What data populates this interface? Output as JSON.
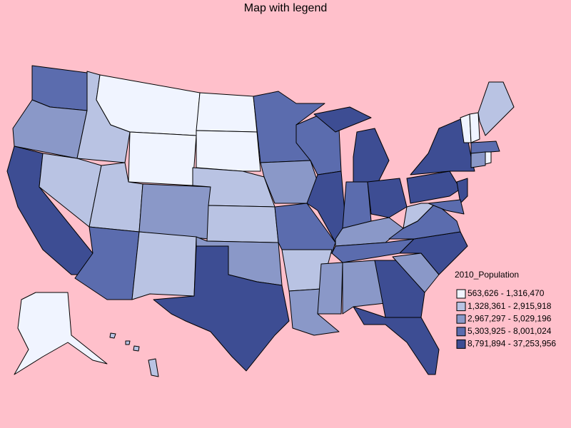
{
  "title": "Map with legend",
  "legend": {
    "title": "2010_Population",
    "items": [
      {
        "label": "563,626 - 1,316,470",
        "color": "#f0f4ff"
      },
      {
        "label": "1,328,361 - 2,915,918",
        "color": "#b9c3e3"
      },
      {
        "label": "2,967,297 - 5,029,196",
        "color": "#8a98c8"
      },
      {
        "label": "5,303,925 - 8,001,024",
        "color": "#5b6cae"
      },
      {
        "label": "8,791,894 - 37,253,956",
        "color": "#3d4d93"
      }
    ]
  }
}
